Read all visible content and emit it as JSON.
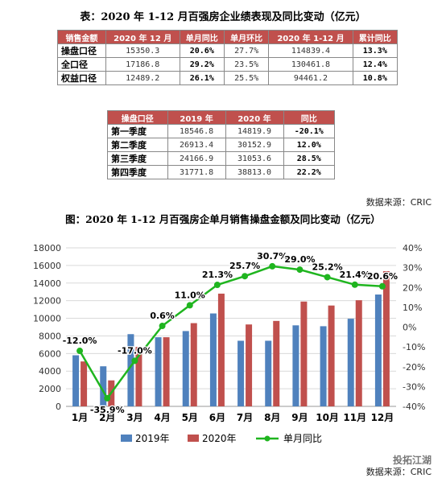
{
  "table1": {
    "title": "表：2020 年 1-12 月百强房企业绩表现及同比变动（亿元）",
    "headers": [
      "销售金额",
      "2020 年 12 月",
      "单月同比",
      "单月环比",
      "2020 年 1-12 月",
      "累计同比"
    ],
    "rows": [
      [
        "操盘口径",
        "15350.3",
        "20.6%",
        "27.7%",
        "114839.4",
        "13.3%"
      ],
      [
        "全口径",
        "17186.8",
        "29.2%",
        "23.5%",
        "130461.8",
        "12.4%"
      ],
      [
        "权益口径",
        "12489.2",
        "26.1%",
        "25.5%",
        "94461.2",
        "10.8%"
      ]
    ]
  },
  "table2": {
    "headers": [
      "操盘口径",
      "2019 年",
      "2020 年",
      "同比"
    ],
    "rows": [
      [
        "第一季度",
        "18546.8",
        "14819.9",
        "-20.1%"
      ],
      [
        "第二季度",
        "26913.4",
        "30152.9",
        "12.0%"
      ],
      [
        "第三季度",
        "24166.9",
        "31053.6",
        "28.5%"
      ],
      [
        "第四季度",
        "31771.8",
        "38813.0",
        "22.2%"
      ]
    ]
  },
  "source1": "数据来源：CRIC",
  "source2": "数据来源：CRIC",
  "watermark": "投拓江湖",
  "colors": {
    "header_bg": "#c0504d",
    "bar2019": "#4f81bd",
    "bar2020": "#c0504d",
    "line": "#1fb51f"
  },
  "chart_data": {
    "type": "bar",
    "title": "图：2020 年 1-12 月百强房企单月销售操盘金额及同比变动（亿元）",
    "categories": [
      "1月",
      "2月",
      "3月",
      "4月",
      "5月",
      "6月",
      "7月",
      "8月",
      "9月",
      "10月",
      "11月",
      "12月"
    ],
    "series": [
      {
        "name": "2019年",
        "type": "bar",
        "axis": "left",
        "values": [
          5800,
          4550,
          8200,
          7850,
          8550,
          10550,
          7450,
          7450,
          9200,
          9100,
          9950,
          12700
        ]
      },
      {
        "name": "2020年",
        "type": "bar",
        "axis": "left",
        "values": [
          5100,
          2950,
          6750,
          7850,
          9450,
          12800,
          9300,
          9700,
          11900,
          11450,
          12050,
          15350
        ]
      },
      {
        "name": "单月同比",
        "type": "line",
        "axis": "right",
        "values": [
          -12.0,
          -35.9,
          -17.0,
          0.6,
          11.0,
          21.3,
          25.7,
          30.7,
          29.0,
          25.2,
          21.4,
          20.6
        ],
        "labels": [
          "-12.0%",
          "-35.9%",
          "-17.0%",
          "0.6%",
          "11.0%",
          "21.3%",
          "25.7%",
          "30.7%",
          "29.0%",
          "25.2%",
          "21.4%",
          "20.6%"
        ]
      }
    ],
    "y_left": {
      "min": 0,
      "max": 18000,
      "step": 2000
    },
    "y_right": {
      "min": -40,
      "max": 40,
      "step": 10
    },
    "legend": "bottom"
  }
}
